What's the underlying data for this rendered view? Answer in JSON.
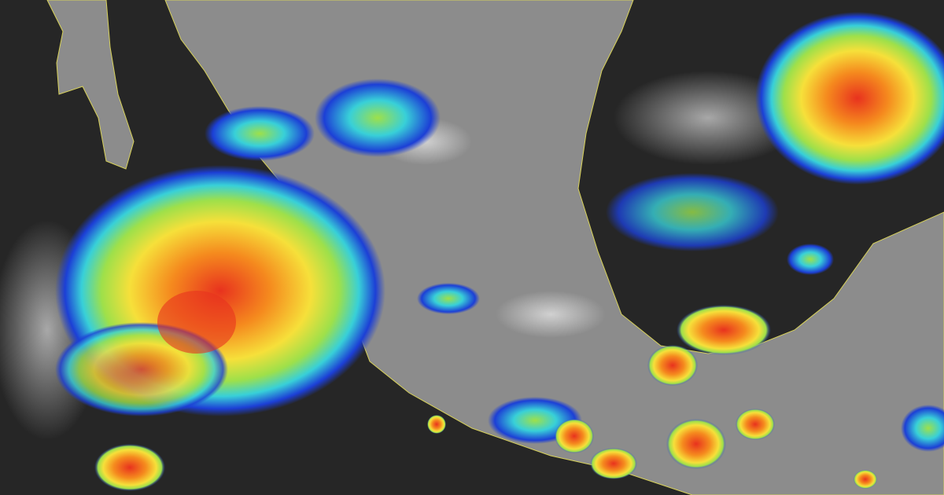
{
  "image": {
    "kind": "satellite-infrared-composite",
    "title": "",
    "colors": {
      "ocean": "#262626",
      "land": "#8c8c8c",
      "border": "#d8d25a",
      "cloud_cold": "#ffffff",
      "precip_blue": "#1c3fd6",
      "precip_cyan": "#38d0d8",
      "precip_green": "#9ee04a",
      "precip_yellow": "#f6e03a",
      "precip_orange": "#f58a1e",
      "precip_red": "#e8321e"
    },
    "features": [
      "tropical-cyclone",
      "convective-storms",
      "coastline",
      "state-borders"
    ]
  }
}
